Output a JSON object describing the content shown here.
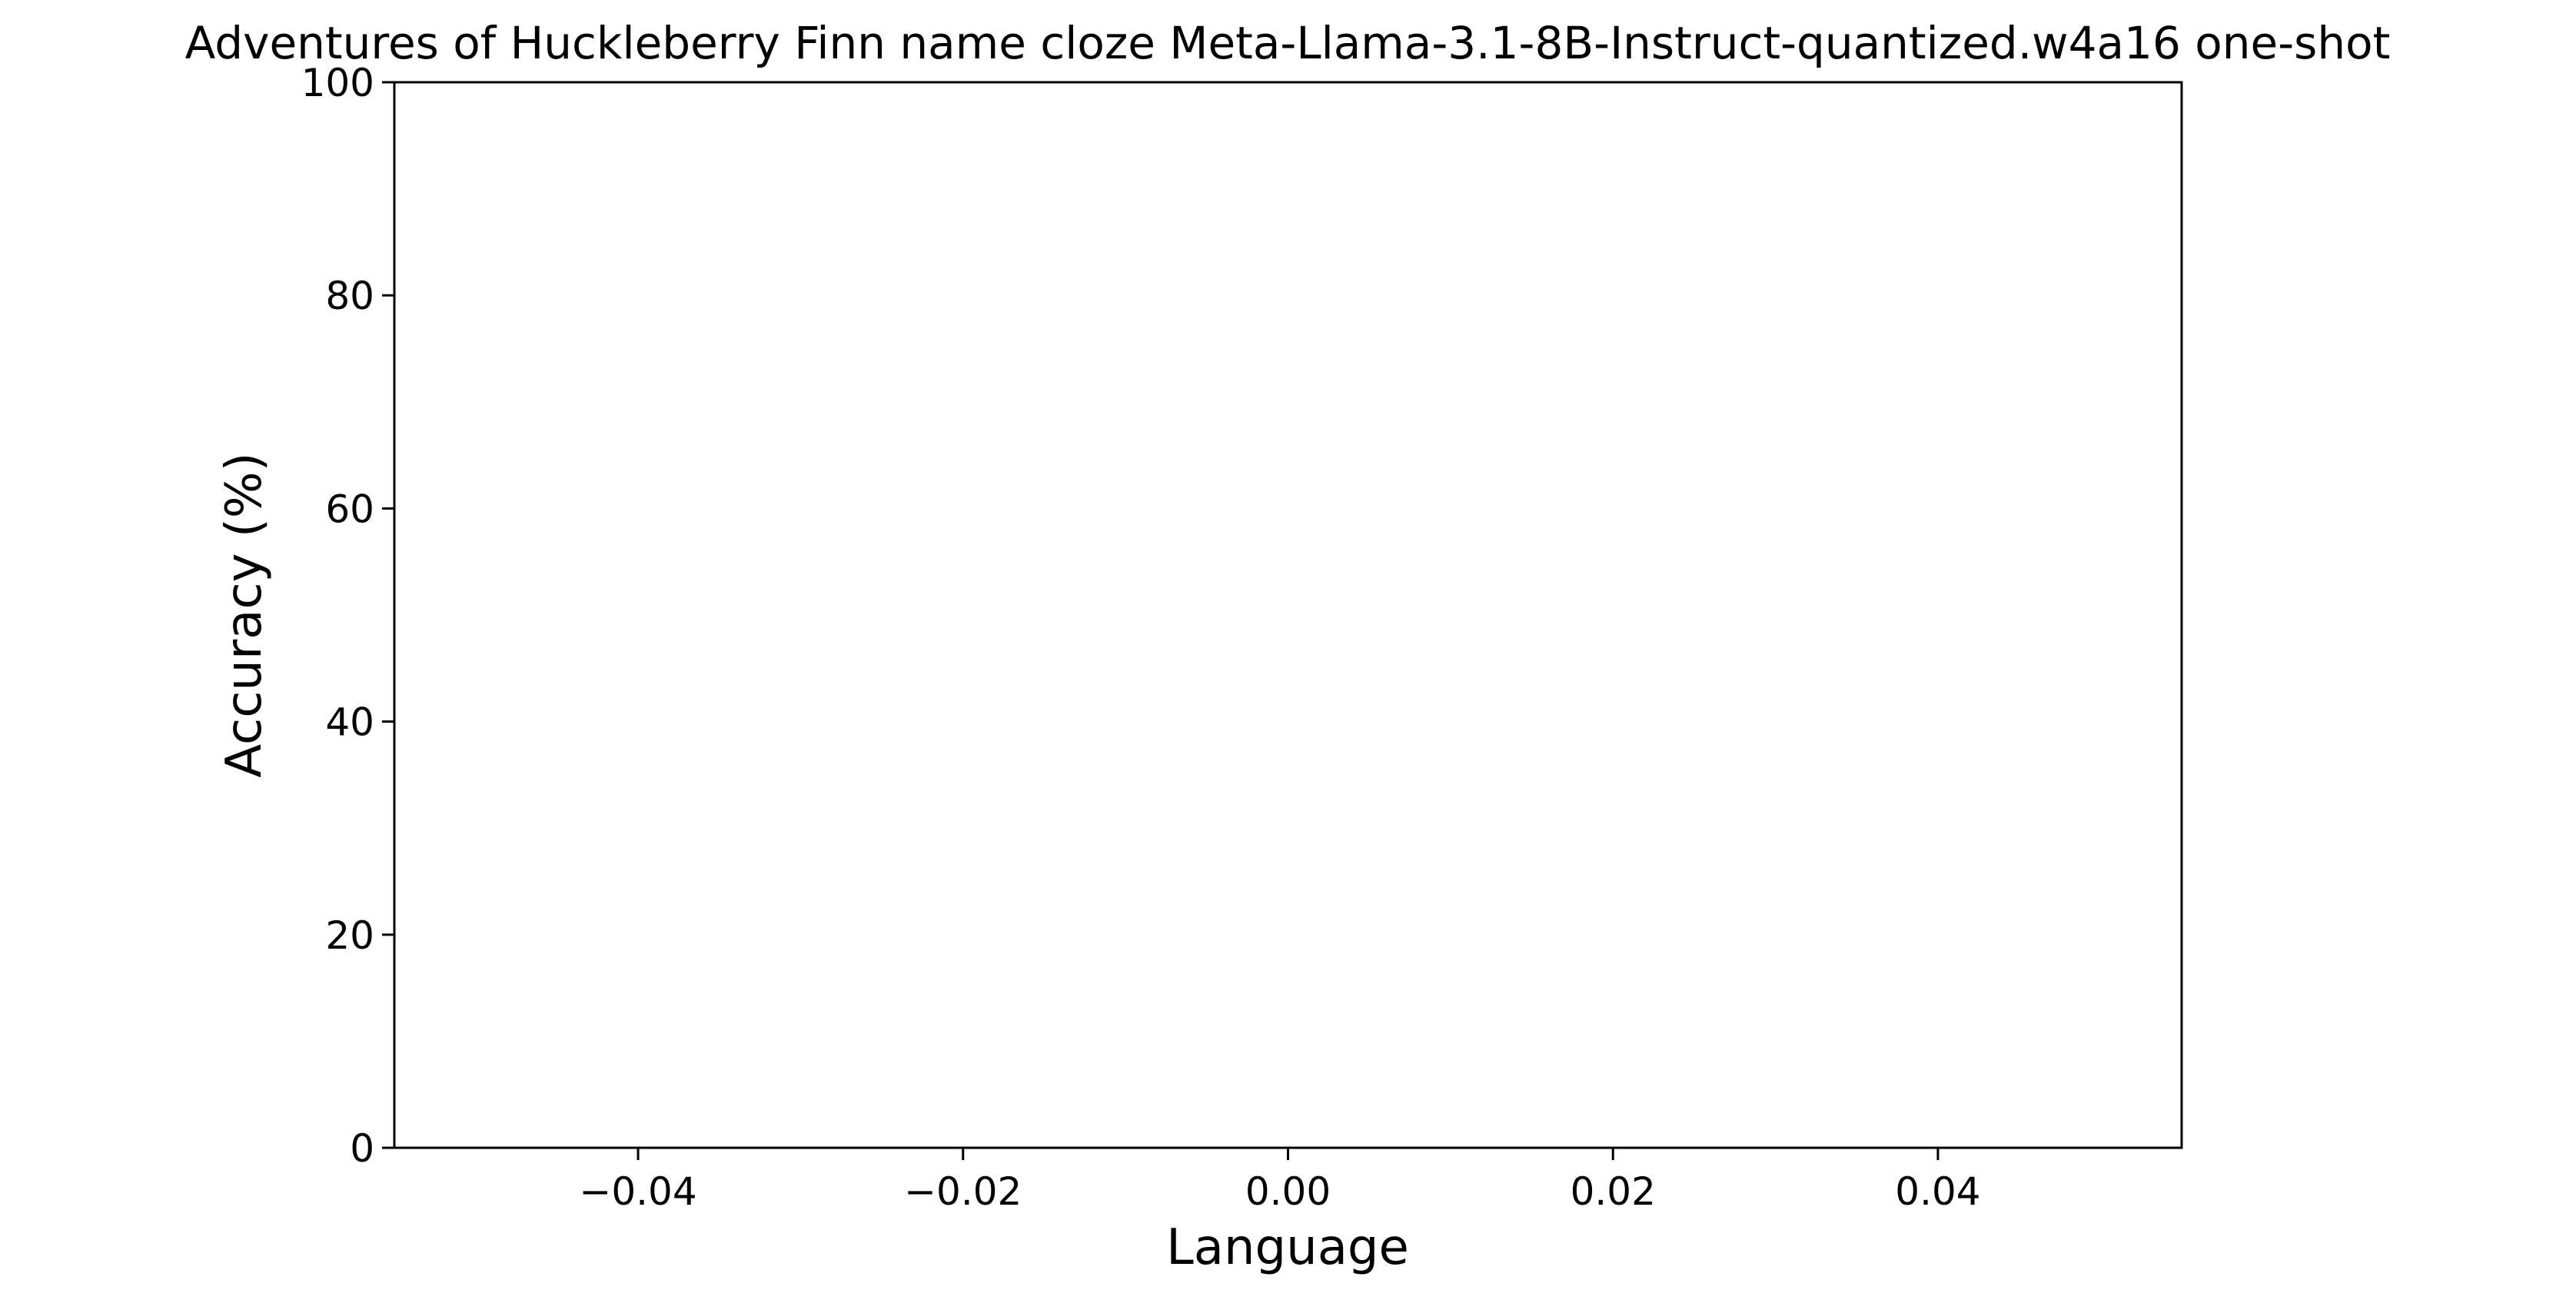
{
  "chart_data": {
    "type": "bar",
    "title": "Adventures of Huckleberry Finn name cloze Meta-Llama-3.1-8B-Instruct-quantized.w4a16 one-shot",
    "xlabel": "Language",
    "ylabel": "Accuracy (%)",
    "xlim": [
      -0.055,
      0.055
    ],
    "ylim": [
      0,
      100
    ],
    "x_ticks": [
      -0.04,
      -0.02,
      0.0,
      0.02,
      0.04
    ],
    "x_tick_labels": [
      "−0.04",
      "−0.02",
      "0.00",
      "0.02",
      "0.04"
    ],
    "y_ticks": [
      0,
      20,
      40,
      60,
      80,
      100
    ],
    "y_tick_labels": [
      "0",
      "20",
      "40",
      "60",
      "80",
      "100"
    ],
    "categories": [],
    "values": [],
    "grid": false,
    "legend": "none"
  }
}
